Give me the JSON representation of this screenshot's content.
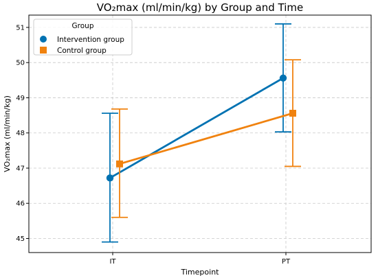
{
  "chart_data": {
    "type": "line",
    "title": "VO₂max (ml/min/kg) by Group and Time",
    "xlabel": "Timepoint",
    "ylabel": "VO₂max (ml/min/kg)",
    "categories": [
      "IT",
      "PT"
    ],
    "ylim": [
      44.6,
      51.35
    ],
    "yticks": [
      45,
      46,
      47,
      48,
      49,
      50,
      51
    ],
    "grid": true,
    "legend": {
      "title": "Group",
      "position": "top-left"
    },
    "series": [
      {
        "name": "Intervention group",
        "color": "#0072B2",
        "marker": "circle",
        "values": [
          46.72,
          49.56
        ],
        "error_low": [
          44.9,
          48.03
        ],
        "error_high": [
          48.56,
          51.1
        ]
      },
      {
        "name": "Control group",
        "color": "#F0820F",
        "marker": "square",
        "values": [
          47.12,
          48.56
        ],
        "error_low": [
          45.6,
          47.05
        ],
        "error_high": [
          48.68,
          50.08
        ]
      }
    ]
  }
}
